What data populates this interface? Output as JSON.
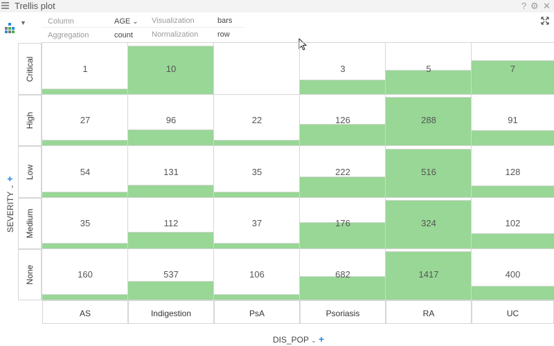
{
  "window": {
    "title": "Trellis plot"
  },
  "titlebar_icons": {
    "help": "?",
    "settings": "⚙",
    "close": "✕"
  },
  "toolbar": {
    "column_label": "Column",
    "column_value": "AGE",
    "visualization_label": "Visualization",
    "visualization_value": "bars",
    "aggregation_label": "Aggregation",
    "aggregation_value": "count",
    "normalization_label": "Normalization",
    "normalization_value": "row"
  },
  "x_axis": {
    "label": "DIS_POP"
  },
  "y_axis": {
    "label": "SEVERITY"
  },
  "colors": {
    "bar": "#98d795",
    "grid": "#d6d6d6"
  },
  "chart_data": {
    "type": "bar",
    "x_categories": [
      "AS",
      "Indigestion",
      "PsA",
      "Psoriasis",
      "RA",
      "UC"
    ],
    "y_categories": [
      "Critical",
      "High",
      "Low",
      "Medium",
      "None"
    ],
    "xlabel": "DIS_POP",
    "ylabel": "SEVERITY",
    "aggregation": "count",
    "normalization": "row",
    "values": [
      [
        1,
        10,
        null,
        3,
        5,
        7
      ],
      [
        27,
        96,
        22,
        126,
        288,
        91
      ],
      [
        54,
        131,
        35,
        222,
        516,
        128
      ],
      [
        35,
        112,
        37,
        176,
        324,
        102
      ],
      [
        160,
        537,
        106,
        682,
        1417,
        400
      ]
    ]
  }
}
